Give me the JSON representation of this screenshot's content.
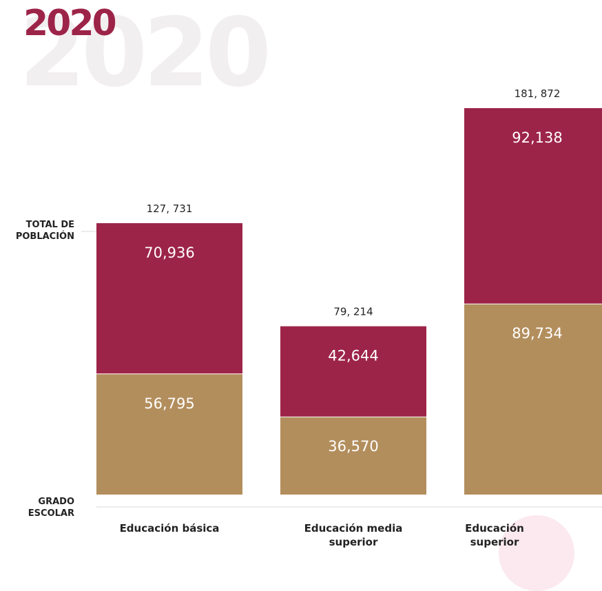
{
  "header": {
    "title": "2020",
    "watermark": "2020"
  },
  "axis": {
    "top_label_line1": "TOTAL DE",
    "top_label_line2": "POBLACIÓN",
    "bottom_label_line1": "GRADO",
    "bottom_label_line2": "ESCOLAR"
  },
  "colors": {
    "top_segment": "#9d2449",
    "bottom_segment": "#b38e5d",
    "title": "#9d2449",
    "label_text": "#222222",
    "segment_text": "#ffffff",
    "axis_line": "#d8d8d8"
  },
  "chart_data": {
    "type": "bar",
    "stacked": true,
    "categories": [
      "Educación básica",
      "Educación media superior",
      "Educación superior"
    ],
    "category_lines": [
      [
        "Educación básica"
      ],
      [
        "Educación media",
        "superior"
      ],
      [
        "Educación",
        "superior"
      ]
    ],
    "series": [
      {
        "values": [
          56795,
          36570,
          89734
        ],
        "labels": [
          "56,795",
          "36,570",
          "89,734"
        ],
        "color": "#b38e5d"
      },
      {
        "values": [
          70936,
          42644,
          92138
        ],
        "labels": [
          "70,936",
          "42,644",
          "92,138"
        ],
        "color": "#9d2449"
      }
    ],
    "totals": [
      127731,
      79214,
      181872
    ],
    "total_labels": [
      "127, 731",
      "79, 214",
      "181, 872"
    ],
    "ylim": [
      0,
      181872
    ],
    "grid": false,
    "legend": "none"
  }
}
